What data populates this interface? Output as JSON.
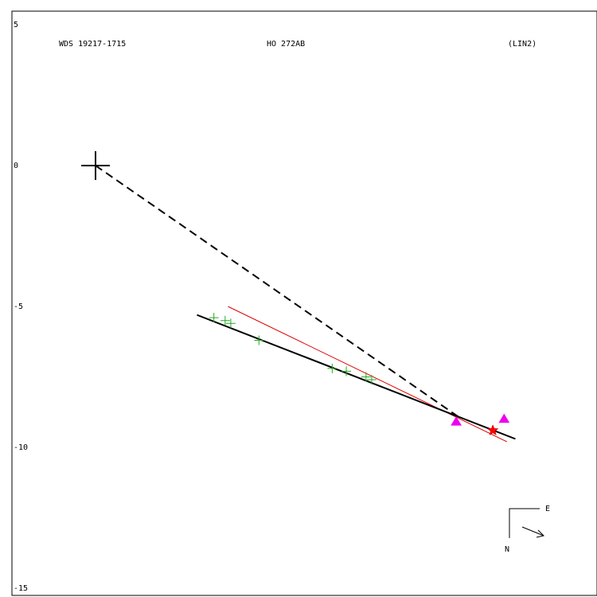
{
  "header": {
    "wds": "WDS 19217-1715",
    "name": "HO  272AB",
    "method": "(LIN2)"
  },
  "compass": {
    "east": "E",
    "north": "N"
  },
  "colors": {
    "fit_line": "#000000",
    "reference_line": "#dd0000",
    "observations": "#22aa22",
    "speckle": "#ee00ee",
    "star": "#ff0000",
    "primary": "#000000"
  },
  "chart_data": {
    "type": "scatter",
    "title": "",
    "xlabel": "",
    "ylabel": "",
    "ylim": [
      -15,
      5
    ],
    "yticks": [
      5,
      0,
      -5,
      -10,
      -15
    ],
    "ytick_labels": [
      "5",
      "0",
      "-5",
      "-10",
      "-15"
    ],
    "grid": false,
    "primary": {
      "x": 0,
      "y": 0
    },
    "observations": [
      {
        "x": 4.2,
        "y": -5.4
      },
      {
        "x": 4.6,
        "y": -5.5
      },
      {
        "x": 4.8,
        "y": -5.6
      },
      {
        "x": 5.8,
        "y": -6.2
      },
      {
        "x": 8.4,
        "y": -7.2
      },
      {
        "x": 8.9,
        "y": -7.3
      },
      {
        "x": 9.6,
        "y": -7.5
      },
      {
        "x": 9.8,
        "y": -7.6
      }
    ],
    "speckle_points": [
      {
        "x": 12.8,
        "y": -9.1
      },
      {
        "x": 14.5,
        "y": -9.0
      }
    ],
    "predicted_position": {
      "x": 14.1,
      "y": -9.4
    },
    "linear_fit": {
      "from": {
        "x": 3.6,
        "y": -5.3
      },
      "to": {
        "x": 14.9,
        "y": -9.7
      }
    },
    "reference_line": {
      "from": {
        "x": 4.7,
        "y": -5.0
      },
      "to": {
        "x": 14.6,
        "y": -9.8
      }
    },
    "dashed_line": {
      "from": {
        "x": 0,
        "y": 0
      },
      "to": {
        "x": 13.0,
        "y": -9.0
      }
    }
  }
}
